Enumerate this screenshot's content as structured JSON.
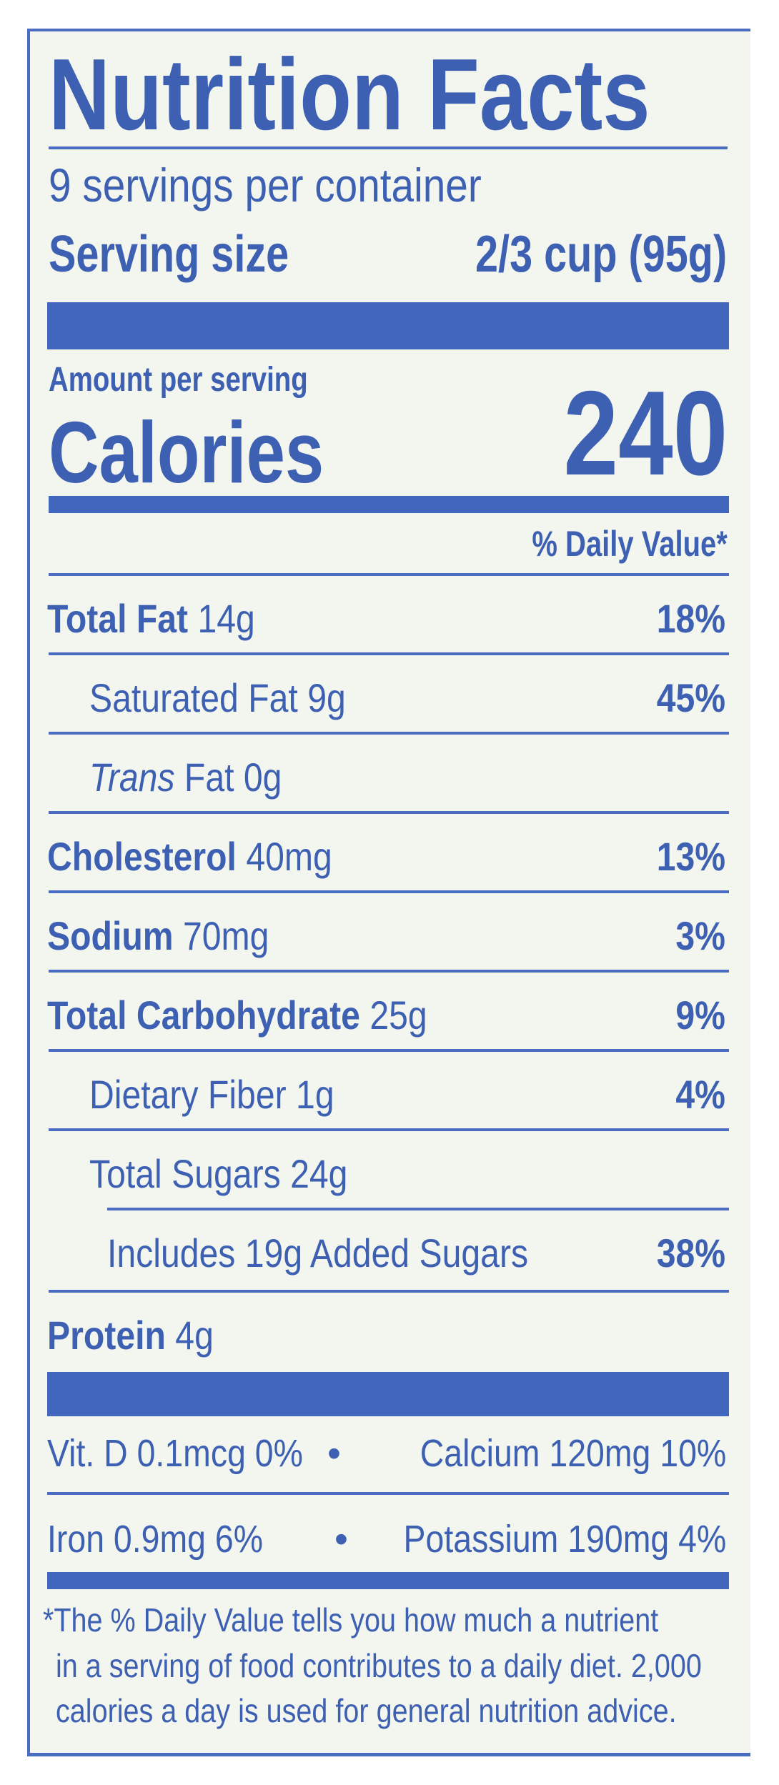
{
  "title": "Nutrition Facts",
  "servings_per_container": "9 servings per container",
  "serving_size_label": "Serving size",
  "serving_size_value": "2/3 cup (95g)",
  "amount_per_serving": "Amount per serving",
  "calories_label": "Calories",
  "calories_value": "240",
  "daily_value_header": "% Daily Value*",
  "nutrients": [
    {
      "name": "Total Fat",
      "amount": "14g",
      "dv": "18%"
    },
    {
      "name": "Saturated Fat",
      "amount": "9g",
      "dv": "45%"
    },
    {
      "name": "Trans",
      "name_rest": "Fat",
      "amount": "0g",
      "dv": ""
    },
    {
      "name": "Cholesterol",
      "amount": "40mg",
      "dv": "13%"
    },
    {
      "name": "Sodium",
      "amount": "70mg",
      "dv": "3%"
    },
    {
      "name": "Total Carbohydrate",
      "amount": "25g",
      "dv": "9%"
    },
    {
      "name": "Dietary Fiber",
      "amount": "1g",
      "dv": "4%"
    },
    {
      "name": "Total Sugars",
      "amount": "24g",
      "dv": ""
    },
    {
      "name": "Includes 19g Added Sugars",
      "amount": "",
      "dv": "38%"
    },
    {
      "name": "Protein",
      "amount": "4g",
      "dv": ""
    }
  ],
  "micronutrients": [
    {
      "text": "Vit. D 0.1mcg 0%",
      "text2": "Calcium 120mg 10%"
    },
    {
      "text": "Iron 0.9mg 6%",
      "text2": "Potassium 190mg 4%"
    }
  ],
  "bullet": "•",
  "footnote": [
    "*The % Daily Value tells you how much a nutrient",
    "in a serving of food contributes to a daily diet. 2,000",
    "calories a day is used for general nutrition advice."
  ],
  "colors": {
    "ink": "#3d60b3",
    "background": "#f3f6ee"
  }
}
